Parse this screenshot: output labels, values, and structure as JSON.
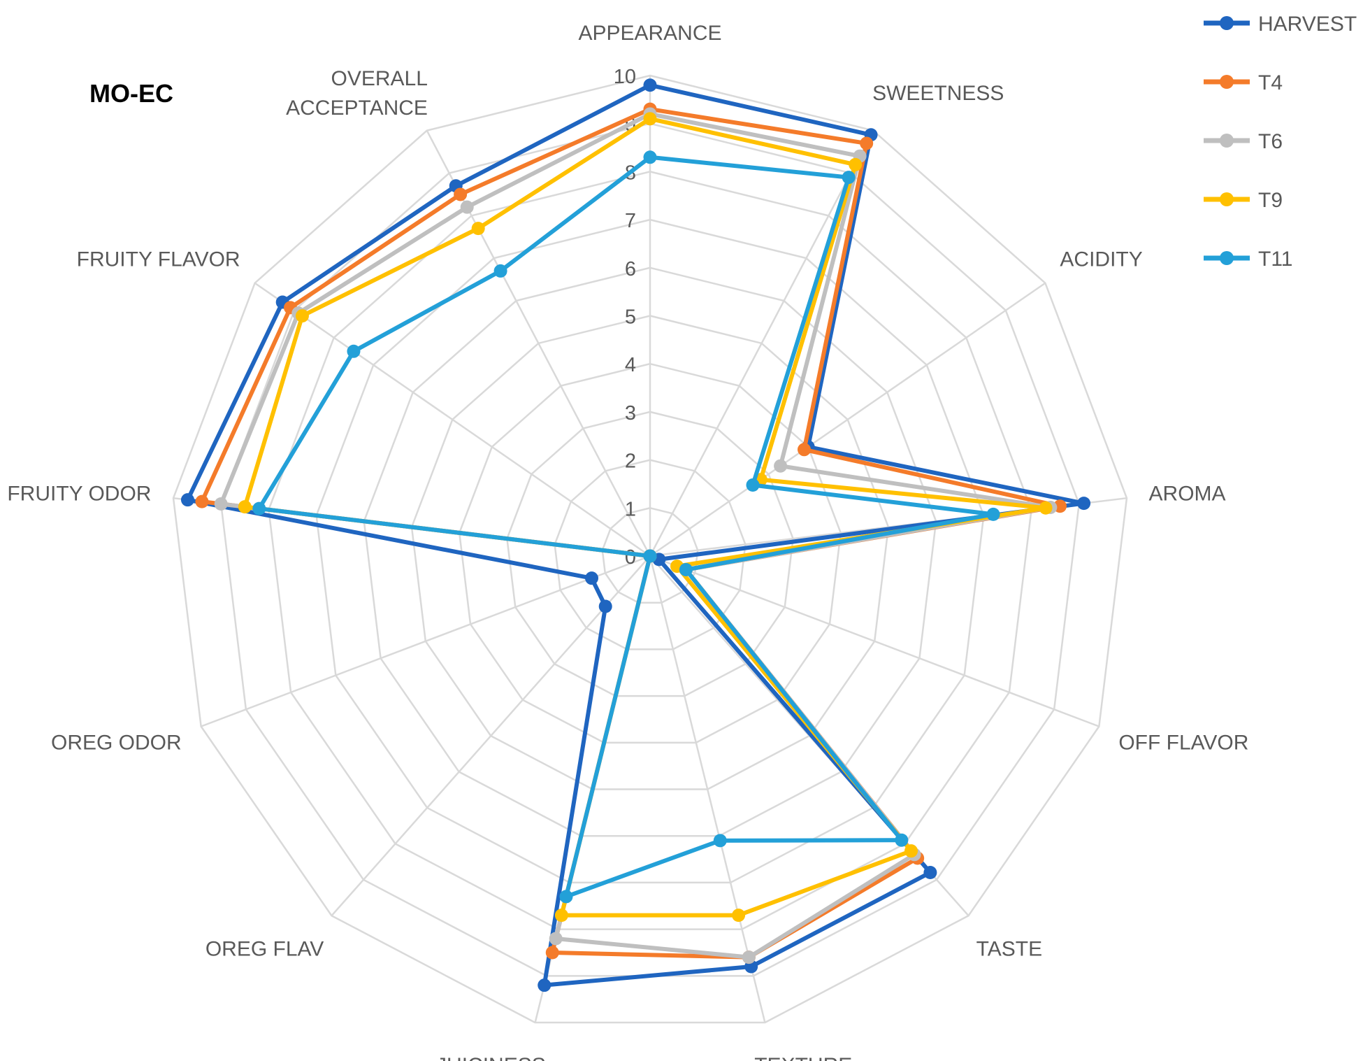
{
  "chart_data": {
    "type": "radar",
    "title": "MO-EC",
    "rmin": 0,
    "rmax": 10,
    "ticks": [
      "0",
      "1",
      "2",
      "3",
      "4",
      "5",
      "6",
      "7",
      "8",
      "9",
      "10"
    ],
    "grid": true,
    "legend_position": "top-right",
    "categories": [
      "APPEARANCE",
      "SWEETNESS",
      "ACIDITY",
      "AROMA",
      "OFF FLAVOR",
      "TASTE",
      "TEXTURE",
      "JUICINESS",
      "OREG FLAV",
      "OREG ODOR",
      "FRUITY ODOR",
      "FRUITY FLAVOR",
      "OVERALL ACCEPTANCE"
    ],
    "series": [
      {
        "name": "HARVEST",
        "color": "#1f65c0",
        "values": [
          9.8,
          9.9,
          4.0,
          9.1,
          0.2,
          8.8,
          8.8,
          9.2,
          1.4,
          1.3,
          9.7,
          9.3,
          8.7
        ]
      },
      {
        "name": "T4",
        "color": "#f47b2a",
        "values": [
          9.3,
          9.7,
          3.9,
          8.6,
          0.8,
          8.4,
          8.6,
          8.5,
          0.0,
          0.0,
          9.4,
          9.1,
          8.5
        ]
      },
      {
        "name": "T6",
        "color": "#bfbfbf",
        "values": [
          9.2,
          9.4,
          3.3,
          8.4,
          0.8,
          8.3,
          8.6,
          8.2,
          0.0,
          0.0,
          9.0,
          8.9,
          8.2
        ]
      },
      {
        "name": "T9",
        "color": "#ffc000",
        "values": [
          9.1,
          9.2,
          2.8,
          8.3,
          0.6,
          8.2,
          7.7,
          7.7,
          0.0,
          0.0,
          8.5,
          8.8,
          7.7
        ]
      },
      {
        "name": "T11",
        "color": "#23a0d8",
        "values": [
          8.3,
          8.9,
          2.6,
          7.2,
          0.8,
          7.9,
          6.1,
          7.3,
          0.0,
          0.0,
          8.2,
          7.5,
          6.7
        ]
      }
    ]
  }
}
